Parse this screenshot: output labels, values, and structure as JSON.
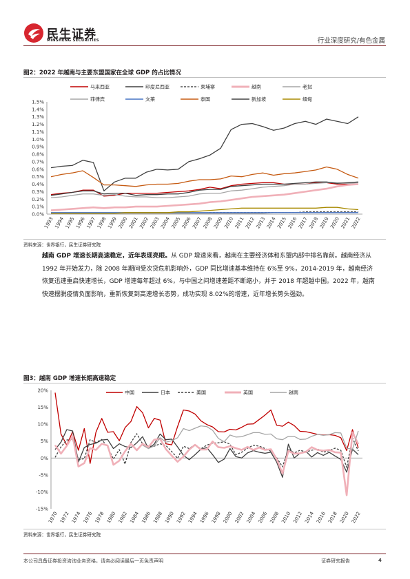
{
  "header": {
    "brand_cn": "民生证券",
    "brand_en": "MINSHENG SECURITIES",
    "category": "行业深度研究/有色金属"
  },
  "figure2": {
    "title": "图2：2022 年越南与主要东盟国家在全球 GDP 的占比情况",
    "source": "资料来源：世界银行，民生证券研究院"
  },
  "paragraph": {
    "lead": "越南 GDP 增速长期高速稳定，近年表现亮眼。",
    "body": "从 GDP 增速来看，越南在主要经济体和东盟内部中排名靠前。越南经济从 1992 年开始发力，除 2008 年期间受次贷危机影响外，GDP 同比增速基本维持在 6%至 9%，2014-2019 年，越南经济恢复迅速重启快速增长，GDP 增速每年超过 6%，与中国之间增速差距不断缩小，并于 2018 年超越中国。2022 年，越南快速摆脱疫情负面影响，重新恢复到高速增长态势，成功实现 8.02%的增速，近年增长势头强劲。"
  },
  "figure3": {
    "title": "图3：越南 GDP 增速长期高速稳定",
    "source": "资料来源：世界银行，民生证券研究院"
  },
  "footer": {
    "disclaimer": "本公司具备证券投资咨询业务资格，请务必阅读最后一页免责声明",
    "report_type": "证券研究报告",
    "page": "4"
  },
  "chart_data": [
    {
      "type": "line",
      "x": [
        1993,
        1994,
        1995,
        1996,
        1997,
        1998,
        1999,
        2000,
        2001,
        2002,
        2003,
        2004,
        2005,
        2006,
        2007,
        2008,
        2009,
        2010,
        2011,
        2012,
        2013,
        2014,
        2015,
        2016,
        2017,
        2018,
        2019,
        2020,
        2021,
        2022
      ],
      "y_ticks": [
        "0.0%",
        "0.1%",
        "0.2%",
        "0.3%",
        "0.4%",
        "0.5%",
        "0.6%",
        "0.7%",
        "0.8%",
        "0.9%",
        "1.0%",
        "1.1%",
        "1.2%",
        "1.3%",
        "1.4%",
        "1.5%"
      ],
      "ylim": [
        0,
        1.5
      ],
      "unit": "%",
      "legend_position": "top",
      "grid": false,
      "series": [
        {
          "name": "马来西亚",
          "color": "#c00000",
          "dash": "solid",
          "values": [
            0.26,
            0.28,
            0.29,
            0.32,
            0.32,
            0.24,
            0.25,
            0.28,
            0.28,
            0.28,
            0.28,
            0.29,
            0.3,
            0.31,
            0.33,
            0.36,
            0.34,
            0.38,
            0.4,
            0.41,
            0.42,
            0.42,
            0.4,
            0.4,
            0.4,
            0.42,
            0.42,
            0.4,
            0.4,
            0.4
          ]
        },
        {
          "name": "印度尼西亚",
          "color": "#404040",
          "dash": "solid",
          "values": [
            0.62,
            0.64,
            0.65,
            0.72,
            0.69,
            0.31,
            0.43,
            0.48,
            0.48,
            0.56,
            0.6,
            0.59,
            0.6,
            0.7,
            0.74,
            0.79,
            0.88,
            1.13,
            1.2,
            1.21,
            1.17,
            1.12,
            1.15,
            1.21,
            1.24,
            1.2,
            1.27,
            1.24,
            1.21,
            1.3
          ]
        },
        {
          "name": "柬埔寨",
          "color": "#505050",
          "dash": "dashed",
          "values": [
            0.01,
            0.01,
            0.01,
            0.01,
            0.01,
            0.01,
            0.01,
            0.01,
            0.01,
            0.01,
            0.01,
            0.01,
            0.01,
            0.01,
            0.01,
            0.02,
            0.02,
            0.02,
            0.02,
            0.02,
            0.02,
            0.02,
            0.02,
            0.02,
            0.03,
            0.03,
            0.03,
            0.03,
            0.03,
            0.03
          ]
        },
        {
          "name": "越南",
          "color": "#f0b0b8",
          "dash": "solid",
          "values": [
            0.05,
            0.06,
            0.07,
            0.08,
            0.09,
            0.08,
            0.09,
            0.09,
            0.1,
            0.1,
            0.1,
            0.11,
            0.12,
            0.13,
            0.14,
            0.16,
            0.17,
            0.19,
            0.21,
            0.23,
            0.24,
            0.25,
            0.26,
            0.28,
            0.3,
            0.32,
            0.34,
            0.37,
            0.39,
            0.4
          ]
        },
        {
          "name": "老挝",
          "color": "#a6a6a6",
          "dash": "solid",
          "values": [
            0.01,
            0.01,
            0.01,
            0.01,
            0.01,
            0.01,
            0.01,
            0.01,
            0.01,
            0.01,
            0.01,
            0.01,
            0.01,
            0.01,
            0.01,
            0.01,
            0.01,
            0.01,
            0.01,
            0.01,
            0.01,
            0.02,
            0.02,
            0.02,
            0.02,
            0.02,
            0.02,
            0.02,
            0.02,
            0.02
          ]
        },
        {
          "name": "菲律宾",
          "color": "#a6a6a6",
          "dash": "solid",
          "values": [
            0.22,
            0.23,
            0.25,
            0.27,
            0.27,
            0.25,
            0.26,
            0.24,
            0.23,
            0.23,
            0.22,
            0.22,
            0.23,
            0.24,
            0.27,
            0.28,
            0.28,
            0.31,
            0.32,
            0.34,
            0.36,
            0.37,
            0.38,
            0.4,
            0.4,
            0.41,
            0.42,
            0.42,
            0.41,
            0.42
          ]
        },
        {
          "name": "文莱",
          "color": "#4472c4",
          "dash": "solid",
          "values": [
            0.02,
            0.02,
            0.02,
            0.02,
            0.02,
            0.02,
            0.02,
            0.02,
            0.02,
            0.02,
            0.02,
            0.02,
            0.02,
            0.02,
            0.02,
            0.02,
            0.02,
            0.02,
            0.02,
            0.02,
            0.02,
            0.02,
            0.02,
            0.02,
            0.02,
            0.02,
            0.02,
            0.02,
            0.02,
            0.02
          ]
        },
        {
          "name": "泰国",
          "color": "#c55a11",
          "dash": "solid",
          "values": [
            0.5,
            0.53,
            0.55,
            0.58,
            0.49,
            0.39,
            0.39,
            0.38,
            0.37,
            0.39,
            0.4,
            0.4,
            0.41,
            0.44,
            0.46,
            0.46,
            0.47,
            0.51,
            0.5,
            0.53,
            0.55,
            0.52,
            0.54,
            0.55,
            0.57,
            0.59,
            0.63,
            0.6,
            0.53,
            0.48
          ]
        },
        {
          "name": "新加坡",
          "color": "#404040",
          "dash": "solid",
          "values": [
            0.25,
            0.27,
            0.29,
            0.31,
            0.31,
            0.27,
            0.28,
            0.28,
            0.25,
            0.26,
            0.26,
            0.27,
            0.27,
            0.29,
            0.32,
            0.33,
            0.33,
            0.37,
            0.38,
            0.39,
            0.4,
            0.4,
            0.4,
            0.41,
            0.42,
            0.43,
            0.43,
            0.41,
            0.42,
            0.43
          ]
        },
        {
          "name": "缅甸",
          "color": "#a88a00",
          "dash": "solid",
          "values": [
            0.01,
            0.01,
            0.01,
            0.01,
            0.01,
            0.01,
            0.01,
            0.02,
            0.02,
            0.02,
            0.02,
            0.02,
            0.03,
            0.03,
            0.04,
            0.05,
            0.06,
            0.07,
            0.08,
            0.08,
            0.08,
            0.08,
            0.08,
            0.08,
            0.08,
            0.08,
            0.09,
            0.09,
            0.07,
            0.06
          ]
        }
      ]
    },
    {
      "type": "line",
      "x": [
        1970,
        1971,
        1972,
        1973,
        1974,
        1975,
        1976,
        1977,
        1978,
        1979,
        1980,
        1981,
        1982,
        1983,
        1984,
        1985,
        1986,
        1987,
        1988,
        1989,
        1990,
        1991,
        1992,
        1993,
        1994,
        1995,
        1996,
        1997,
        1998,
        1999,
        2000,
        2001,
        2002,
        2003,
        2004,
        2005,
        2006,
        2007,
        2008,
        2009,
        2010,
        2011,
        2012,
        2013,
        2014,
        2015,
        2016,
        2017,
        2018,
        2019,
        2020,
        2021,
        2022
      ],
      "x_tick_labels": [
        "1970",
        "1972",
        "1974",
        "1976",
        "1978",
        "1980",
        "1982",
        "1984",
        "1986",
        "1988",
        "1990",
        "1992",
        "1994",
        "1996",
        "1998",
        "2000",
        "2002",
        "2004",
        "2006",
        "2008",
        "2010",
        "2012",
        "2014",
        "2016",
        "2018",
        "2020",
        "2022"
      ],
      "y_ticks": [
        "-15%",
        "-10%",
        "-5%",
        "0%",
        "5%",
        "10%",
        "15%",
        "20%"
      ],
      "ylim": [
        -15,
        20
      ],
      "unit": "%",
      "legend_position": "top",
      "grid": false,
      "series": [
        {
          "name": "中国",
          "color": "#c00000",
          "dash": "solid",
          "values": [
            19.3,
            7.1,
            3.8,
            7.8,
            2.3,
            8.7,
            -1.6,
            7.6,
            11.7,
            7.6,
            7.8,
            5.1,
            9.0,
            10.8,
            15.2,
            13.4,
            8.9,
            11.7,
            11.2,
            4.2,
            3.9,
            9.3,
            14.2,
            13.9,
            13.0,
            11.0,
            9.9,
            9.2,
            7.8,
            7.7,
            8.5,
            8.3,
            9.1,
            10.0,
            10.1,
            11.4,
            12.7,
            14.2,
            9.7,
            9.4,
            10.6,
            9.6,
            7.9,
            7.8,
            7.4,
            7.0,
            6.8,
            6.9,
            6.7,
            6.0,
            2.2,
            8.4,
            3.0
          ]
        },
        {
          "name": "日本",
          "color": "#404040",
          "dash": "solid",
          "values": [
            2.5,
            4.7,
            8.4,
            8.0,
            -1.2,
            3.1,
            4.0,
            4.4,
            5.3,
            5.5,
            2.8,
            4.2,
            3.4,
            3.1,
            4.5,
            6.3,
            2.8,
            4.1,
            7.1,
            5.4,
            5.6,
            3.3,
            0.8,
            -0.5,
            1.0,
            2.6,
            3.1,
            1.0,
            -1.3,
            -0.3,
            2.8,
            0.4,
            0.0,
            1.5,
            2.2,
            1.7,
            1.4,
            1.7,
            -1.2,
            -5.7,
            4.1,
            0.0,
            1.4,
            2.0,
            0.3,
            1.6,
            0.8,
            1.7,
            0.6,
            -0.4,
            -4.2,
            2.6,
            1.0
          ]
        },
        {
          "name": "美国",
          "color": "#404040",
          "dash": "dashed",
          "values": [
            0.2,
            3.3,
            5.3,
            5.6,
            -0.5,
            -0.2,
            5.4,
            4.6,
            5.5,
            3.2,
            -0.3,
            2.5,
            -1.8,
            4.6,
            7.2,
            4.2,
            3.5,
            3.5,
            4.2,
            3.7,
            1.9,
            -0.1,
            3.5,
            2.8,
            4.0,
            2.7,
            3.8,
            4.4,
            4.5,
            4.8,
            4.1,
            1.0,
            1.7,
            2.9,
            3.8,
            3.5,
            2.8,
            2.0,
            0.1,
            -2.6,
            2.7,
            1.5,
            2.3,
            1.8,
            2.3,
            2.7,
            1.7,
            2.2,
            2.9,
            2.3,
            -2.8,
            5.9,
            2.1
          ]
        },
        {
          "name": "英国",
          "color": "#f0b0b8",
          "dash": "solid",
          "values": [
            3.8,
            1.3,
            3.6,
            6.5,
            -2.5,
            -1.5,
            2.9,
            2.4,
            4.2,
            3.7,
            -2.0,
            -0.8,
            2.0,
            4.2,
            2.3,
            4.2,
            3.2,
            5.4,
            5.7,
            2.6,
            0.7,
            -1.1,
            0.4,
            2.5,
            3.9,
            2.5,
            2.5,
            4.9,
            3.2,
            3.0,
            3.5,
            2.9,
            2.4,
            3.3,
            2.4,
            3.1,
            2.4,
            2.6,
            -0.3,
            -4.6,
            2.1,
            1.3,
            1.4,
            1.8,
            3.2,
            2.4,
            2.2,
            2.4,
            1.7,
            1.6,
            -11.0,
            7.6,
            4.1
          ]
        },
        {
          "name": "越南",
          "color": "#a6a6a6",
          "dash": "solid",
          "values": [
            null,
            null,
            null,
            null,
            null,
            null,
            null,
            null,
            null,
            null,
            null,
            null,
            null,
            null,
            null,
            3.8,
            2.8,
            3.6,
            6.0,
            4.7,
            5.1,
            6.0,
            8.7,
            8.1,
            8.8,
            9.5,
            9.3,
            8.2,
            5.8,
            4.8,
            6.8,
            6.2,
            6.3,
            6.9,
            7.5,
            7.5,
            7.0,
            7.1,
            5.7,
            5.4,
            6.4,
            6.4,
            5.5,
            5.6,
            6.4,
            7.0,
            6.7,
            6.9,
            7.5,
            7.4,
            2.9,
            2.6,
            8.0
          ]
        }
      ]
    }
  ]
}
